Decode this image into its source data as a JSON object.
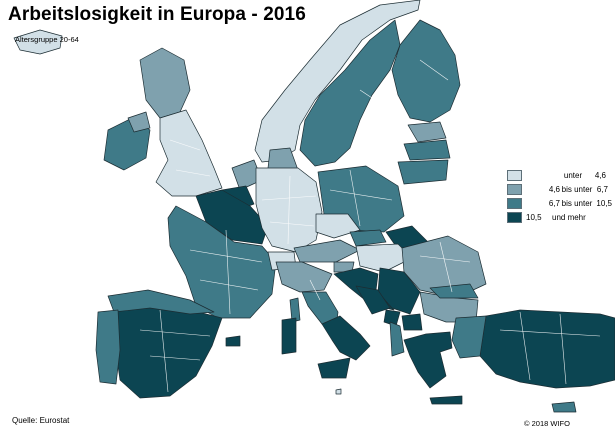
{
  "title": "Arbeitslosigkeit in Europa - 2016",
  "subtitle": "Altersgruppe 20-64",
  "source": "Quelle: Eurostat",
  "copyright": "© 2018 WIFO",
  "colors": {
    "class_1": "#d2e0e7",
    "class_2": "#7fa1ae",
    "class_3": "#3f7a88",
    "class_4": "#0c4552",
    "border": "#ffffff",
    "outline": "#1c2d33",
    "background": "#ffffff"
  },
  "legend": [
    {
      "lower": "",
      "separator": "unter",
      "upper": "4,6"
    },
    {
      "lower": "4,6",
      "separator": "bis unter",
      "upper": "6,7"
    },
    {
      "lower": "6,7",
      "separator": "bis unter",
      "upper": "10,5"
    },
    {
      "lower": "10,5",
      "separator": "und mehr",
      "upper": ""
    }
  ],
  "regions": [
    {
      "name": "Island",
      "class": 1
    },
    {
      "name": "Norwegen",
      "class": 1
    },
    {
      "name": "Schweden",
      "class": 3
    },
    {
      "name": "Finnland",
      "class": 3
    },
    {
      "name": "Estland",
      "class": 2
    },
    {
      "name": "Lettland",
      "class": 3
    },
    {
      "name": "Litauen",
      "class": 3
    },
    {
      "name": "Dänemark",
      "class": 2
    },
    {
      "name": "Irland",
      "class": 3
    },
    {
      "name": "Schottland",
      "class": 2
    },
    {
      "name": "Nordirland",
      "class": 2
    },
    {
      "name": "England",
      "class": 1
    },
    {
      "name": "Niederlande",
      "class": 2
    },
    {
      "name": "Belgien",
      "class": 4
    },
    {
      "name": "Nordfrankreich",
      "class": 4
    },
    {
      "name": "Frankreich",
      "class": 3
    },
    {
      "name": "Korsika",
      "class": 3
    },
    {
      "name": "Deutschland",
      "class": 1
    },
    {
      "name": "Polen",
      "class": 3
    },
    {
      "name": "Tschechien",
      "class": 1
    },
    {
      "name": "Österreich",
      "class": 2
    },
    {
      "name": "Schweiz",
      "class": 1
    },
    {
      "name": "Slowakei",
      "class": 3
    },
    {
      "name": "Ostslowakei",
      "class": 4
    },
    {
      "name": "Ungarn",
      "class": 1
    },
    {
      "name": "Rumänien",
      "class": 2
    },
    {
      "name": "Slowenien",
      "class": 2
    },
    {
      "name": "Kroatien",
      "class": 4
    },
    {
      "name": "Serbien",
      "class": 4
    },
    {
      "name": "Bosnien und Herzegowina",
      "class": 4
    },
    {
      "name": "Montenegro",
      "class": 4
    },
    {
      "name": "Nordmazedonien",
      "class": 4
    },
    {
      "name": "Albanien",
      "class": 3
    },
    {
      "name": "Bulgarien",
      "class": 2
    },
    {
      "name": "Nordbulgarien",
      "class": 3
    },
    {
      "name": "Norditalien",
      "class": 2
    },
    {
      "name": "Mittelitalien",
      "class": 3
    },
    {
      "name": "Süditalien",
      "class": 4
    },
    {
      "name": "Sizilien",
      "class": 4
    },
    {
      "name": "Sardinien",
      "class": 4
    },
    {
      "name": "Spanien",
      "class": 4
    },
    {
      "name": "Nordspanien",
      "class": 3
    },
    {
      "name": "Portugal",
      "class": 3
    },
    {
      "name": "Griechenland",
      "class": 4
    },
    {
      "name": "Türkei",
      "class": 4
    },
    {
      "name": "Westtürkei",
      "class": 3
    },
    {
      "name": "Zypern",
      "class": 3
    },
    {
      "name": "Malta",
      "class": 1
    },
    {
      "name": "Kreta",
      "class": 4
    },
    {
      "name": "Balearen",
      "class": 4
    }
  ]
}
